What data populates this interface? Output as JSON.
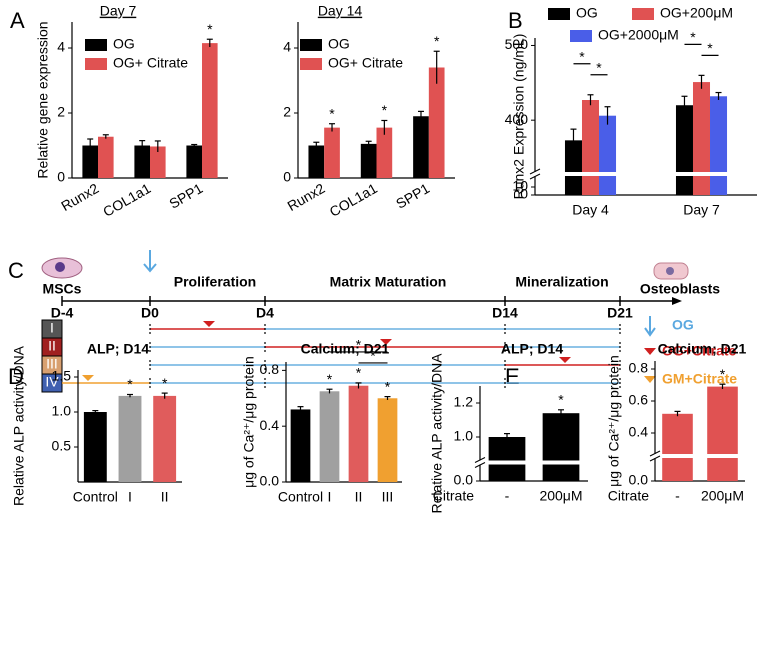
{
  "panel_labels": [
    "A",
    "B",
    "C",
    "D",
    "E"
  ],
  "chart_data": [
    {
      "type": "bar",
      "title": "Day 7",
      "ylabel": "Relative gene expression",
      "categories": [
        "Runx2",
        "COL1a1",
        "SPP1"
      ],
      "series": [
        {
          "name": "OG",
          "color": "#000000",
          "values": [
            1.0,
            1.0,
            1.0
          ],
          "errors": [
            0.2,
            0.15,
            0.03
          ]
        },
        {
          "name": "OG+ Citrate",
          "color": "#e05252",
          "values": [
            1.27,
            0.97,
            4.15
          ],
          "errors": [
            0.06,
            0.17,
            0.12
          ],
          "significance": [
            null,
            null,
            "*"
          ]
        }
      ],
      "ylim": [
        0,
        4.8
      ],
      "yticks": [
        0,
        2,
        4
      ]
    },
    {
      "type": "bar",
      "title": "Day 14",
      "categories": [
        "Runx2",
        "COL1a1",
        "SPP1"
      ],
      "series": [
        {
          "name": "OG",
          "color": "#000000",
          "values": [
            1.0,
            1.05,
            1.9
          ],
          "errors": [
            0.1,
            0.08,
            0.15
          ]
        },
        {
          "name": "OG+ Citrate",
          "color": "#e05252",
          "values": [
            1.55,
            1.55,
            3.4
          ],
          "errors": [
            0.12,
            0.22,
            0.5
          ],
          "significance": [
            "*",
            "*",
            "*"
          ]
        }
      ],
      "ylim": [
        0,
        4.8
      ],
      "yticks": [
        0,
        2,
        4
      ]
    },
    {
      "type": "bar",
      "ylabel": "Runx2 Expression (ng/mL)",
      "categories": [
        "Day 4",
        "Day 7"
      ],
      "series": [
        {
          "name": "OG",
          "color": "#000000",
          "values": [
            373,
            420
          ],
          "errors": [
            15,
            12
          ]
        },
        {
          "name": "OG+200μM",
          "color": "#e05252",
          "values": [
            427,
            451
          ],
          "errors": [
            7,
            9
          ]
        },
        {
          "name": "OG+2000μM",
          "color": "#4a5ee8",
          "values": [
            406,
            432
          ],
          "errors": [
            12,
            5
          ]
        }
      ],
      "comparisons": [
        {
          "category": 0,
          "series": [
            0,
            1
          ],
          "label": "*"
        },
        {
          "category": 0,
          "series": [
            1,
            2
          ],
          "label": "*"
        },
        {
          "category": 1,
          "series": [
            0,
            1
          ],
          "label": "*"
        },
        {
          "category": 1,
          "series": [
            1,
            2
          ],
          "label": "*"
        }
      ],
      "ylim": [
        0,
        510
      ],
      "ybreak": [
        15,
        340
      ],
      "yticks": [
        0,
        10,
        400,
        500
      ]
    },
    {
      "type": "bar",
      "title": "ALP; D14",
      "ylabel": "Relative ALP activity/DNA",
      "categories": [
        "Control",
        "I",
        "II"
      ],
      "values": [
        1.0,
        1.23,
        1.23
      ],
      "colors": [
        "#000000",
        "#a0a0a0",
        "#e05c5c"
      ],
      "errors": [
        0.02,
        0.02,
        0.04
      ],
      "significance": [
        null,
        "*",
        "*"
      ],
      "ylim": [
        0,
        1.6
      ],
      "yticks": [
        0.5,
        {
          "value": 1,
          "label": "1.0"
        },
        1.5
      ]
    },
    {
      "type": "bar",
      "title": "Calcium; D21",
      "ylabel": "μg of Ca²⁺/μg protein",
      "categories": [
        "Control",
        "I",
        "II",
        "III"
      ],
      "values": [
        0.52,
        0.65,
        0.69,
        0.6
      ],
      "colors": [
        "#000000",
        "#a0a0a0",
        "#e05c5c",
        "#f0a030"
      ],
      "errors": [
        0.02,
        0.015,
        0.02,
        0.012
      ],
      "significance": [
        null,
        "*",
        "*",
        "*"
      ],
      "comparisons": [
        {
          "categories": [
            1,
            3
          ],
          "label": "*"
        },
        {
          "categories": [
            2,
            3
          ],
          "label": "*"
        }
      ],
      "ylim": [
        0,
        0.86
      ],
      "yticks": [
        {
          "value": 0,
          "label": "0.0"
        },
        0.4,
        0.8
      ]
    },
    {
      "type": "bar",
      "title": "ALP; D14",
      "ylabel": "Relative ALP activity/DNA",
      "xlabel": "Citrate",
      "categories": [
        "-",
        "200μM"
      ],
      "values": [
        1.0,
        1.14
      ],
      "colors": [
        "#000000",
        "#000000"
      ],
      "errors": [
        0.02,
        0.02
      ],
      "significance": [
        null,
        "*"
      ],
      "ylim": [
        0,
        1.3
      ],
      "ybreak": [
        0.15,
        0.9
      ],
      "yticks": [
        {
          "value": 0,
          "label": "0.0"
        },
        {
          "value": 1,
          "label": "1.0"
        },
        1.2
      ]
    },
    {
      "type": "bar",
      "title": "Calcium; D21",
      "ylabel": "μg of Ca²⁺/μg protein",
      "xlabel": "Citrate",
      "categories": [
        "-",
        "200μM"
      ],
      "values": [
        0.52,
        0.69
      ],
      "colors": [
        "#e05252",
        "#e05252"
      ],
      "errors": [
        0.015,
        0.015
      ],
      "significance": [
        null,
        "*"
      ],
      "ylim": [
        0,
        0.85
      ],
      "ybreak": [
        0.1,
        0.35
      ],
      "yticks": [
        {
          "value": 0,
          "label": "0.0"
        },
        0.4,
        0.6,
        0.8
      ]
    }
  ],
  "diagram": {
    "cell_start": "MSCs",
    "cell_end": "Osteoblasts",
    "days": [
      "D-4",
      "D0",
      "D4",
      "D14",
      "D21"
    ],
    "phases": [
      "Proliferation",
      "Matrix Maturation",
      "Mineralization"
    ],
    "groups": [
      "I",
      "II",
      "III",
      "IV"
    ],
    "legend": [
      "OG",
      "OG+Citrate",
      "GM+Citrate"
    ]
  }
}
